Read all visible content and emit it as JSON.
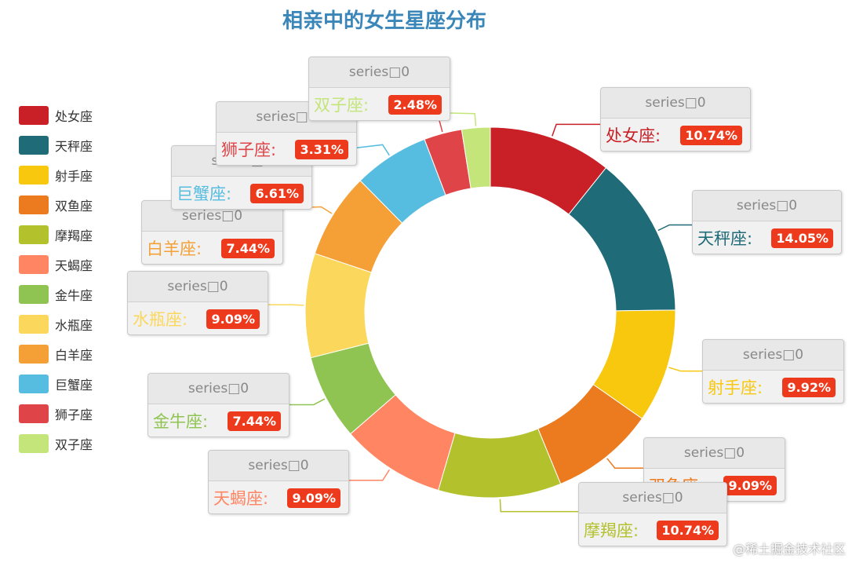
{
  "chart_data": {
    "type": "pie",
    "variant": "donut",
    "title": "相亲中的女生星座分布",
    "series": [
      {
        "name": "series□0",
        "slices": [
          {
            "label": "处女座",
            "value": 10.74,
            "color": "#c91f26"
          },
          {
            "label": "天秤座",
            "value": 14.05,
            "color": "#1f6b77"
          },
          {
            "label": "射手座",
            "value": 9.92,
            "color": "#f7c80e"
          },
          {
            "label": "双鱼座",
            "value": 9.09,
            "color": "#ec7a1e"
          },
          {
            "label": "摩羯座",
            "value": 10.74,
            "color": "#b2c12c"
          },
          {
            "label": "天蝎座",
            "value": 9.09,
            "color": "#ff8563"
          },
          {
            "label": "金牛座",
            "value": 7.44,
            "color": "#8fc452"
          },
          {
            "label": "水瓶座",
            "value": 9.09,
            "color": "#fbd75b"
          },
          {
            "label": "白羊座",
            "value": 7.44,
            "color": "#f4a037"
          },
          {
            "label": "巨蟹座",
            "value": 6.61,
            "color": "#56bde0"
          },
          {
            "label": "狮子座",
            "value": 3.31,
            "color": "#df4548"
          },
          {
            "label": "双子座",
            "value": 2.48,
            "color": "#c3e57a"
          }
        ]
      }
    ],
    "labels": [
      {
        "series": "series□0",
        "name": "处女座",
        "percent": "10.74%"
      },
      {
        "series": "series□0",
        "name": "天秤座",
        "percent": "14.05%"
      },
      {
        "series": "series□0",
        "name": "射手座",
        "percent": "9.92%"
      },
      {
        "series": "series□0",
        "name": "双鱼座",
        "percent": "9.09%"
      },
      {
        "series": "series□0",
        "name": "摩羯座",
        "percent": "10.74%"
      },
      {
        "series": "series□0",
        "name": "天蝎座",
        "percent": "9.09%"
      },
      {
        "series": "series□0",
        "name": "金牛座",
        "percent": "7.44%"
      },
      {
        "series": "series□0",
        "name": "水瓶座",
        "percent": "9.09%"
      },
      {
        "series": "series□0",
        "name": "白羊座",
        "percent": "7.44%"
      },
      {
        "series": "series□0",
        "name": "巨蟹座",
        "percent": "6.61%"
      },
      {
        "series": "series□0",
        "name": "狮子座",
        "percent": "3.31%"
      },
      {
        "series": "series□0",
        "name": "双子座",
        "percent": "2.48%"
      }
    ],
    "legend": {
      "position": "left",
      "items": [
        "处女座",
        "天秤座",
        "射手座",
        "双鱼座",
        "摩羯座",
        "天蝎座",
        "金牛座",
        "水瓶座",
        "白羊座",
        "巨蟹座",
        "狮子座",
        "双子座"
      ]
    }
  },
  "watermark": "@稀土掘金技术社区"
}
